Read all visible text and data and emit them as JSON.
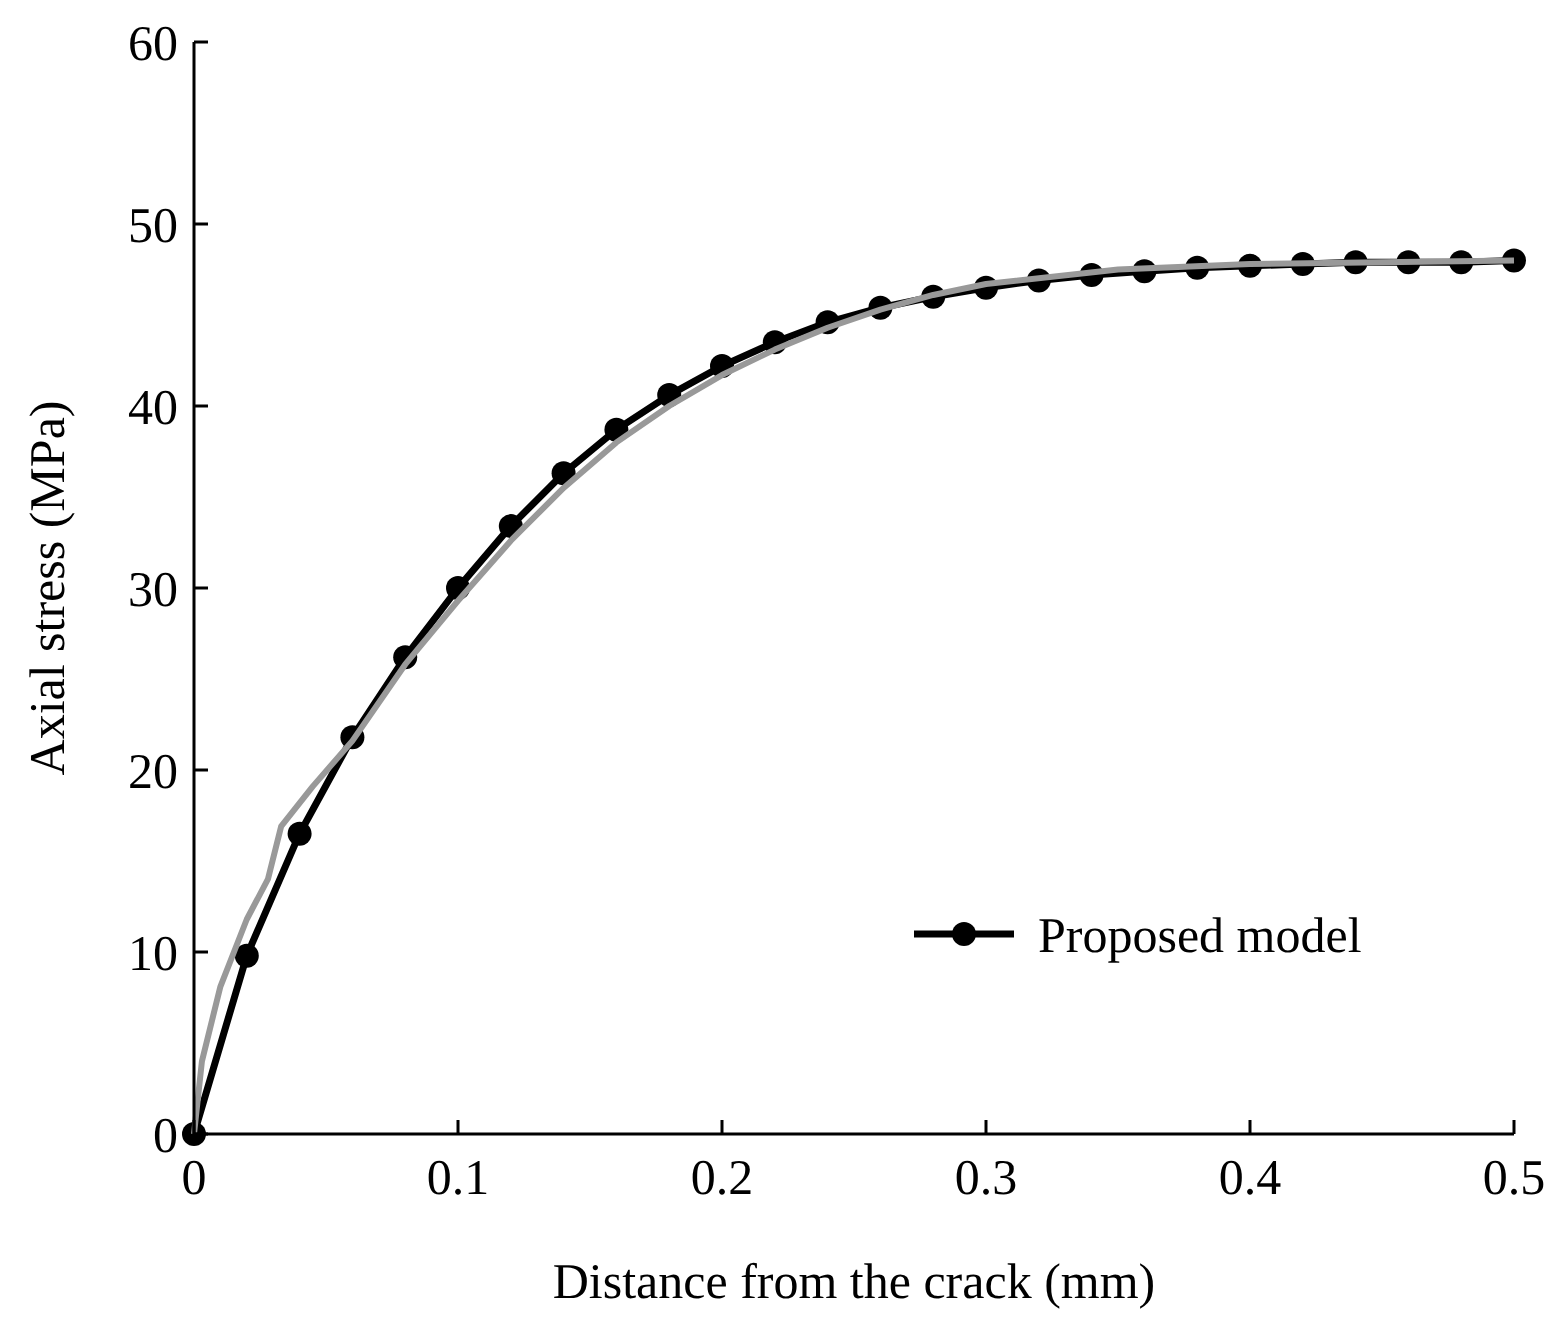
{
  "chart_data": {
    "type": "line",
    "xlabel": "Distance from the crack (mm)",
    "ylabel": "Axial stress (MPa)",
    "xlim": [
      0,
      0.5
    ],
    "ylim": [
      0,
      60
    ],
    "xticks": [
      0,
      0.1,
      0.2,
      0.3,
      0.4,
      0.5
    ],
    "yticks": [
      0,
      10,
      20,
      30,
      40,
      50,
      60
    ],
    "legend": "bottom right",
    "grid": false,
    "series": [
      {
        "name": "Proposed model",
        "color": "#000000",
        "marker": "circle",
        "x": [
          0,
          0.02,
          0.04,
          0.06,
          0.08,
          0.1,
          0.12,
          0.14,
          0.16,
          0.18,
          0.2,
          0.22,
          0.24,
          0.26,
          0.28,
          0.3,
          0.32,
          0.34,
          0.36,
          0.38,
          0.4,
          0.42,
          0.44,
          0.46,
          0.48,
          0.5
        ],
        "values": [
          0,
          9.8,
          16.5,
          21.8,
          26.2,
          30.0,
          33.4,
          36.3,
          38.7,
          40.6,
          42.2,
          43.5,
          44.6,
          45.4,
          46.0,
          46.5,
          46.9,
          47.2,
          47.4,
          47.6,
          47.7,
          47.8,
          47.9,
          47.9,
          47.9,
          48.0
        ]
      },
      {
        "color": "#999999",
        "marker": "none",
        "x": [
          0,
          0.003,
          0.01,
          0.02,
          0.028,
          0.033,
          0.045,
          0.06,
          0.08,
          0.1,
          0.12,
          0.14,
          0.16,
          0.18,
          0.2,
          0.22,
          0.24,
          0.26,
          0.28,
          0.3,
          0.35,
          0.4,
          0.45,
          0.5
        ],
        "values": [
          0,
          4,
          8.1,
          11.8,
          14,
          16.9,
          19.1,
          21.6,
          25.8,
          29.3,
          32.6,
          35.5,
          38,
          40,
          41.7,
          43.1,
          44.3,
          45.3,
          46.1,
          46.7,
          47.5,
          47.8,
          47.9,
          48
        ]
      }
    ]
  }
}
